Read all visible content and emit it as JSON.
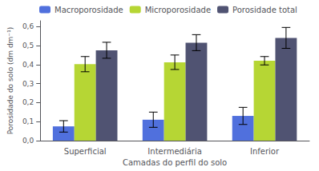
{
  "chart_data": {
    "type": "bar",
    "xlabel": "Camadas do perfil do solo",
    "ylabel": "Porosidade do solo (dm dm⁻¹)",
    "categories": [
      "Superficial",
      "Intermediária",
      "Inferior"
    ],
    "series": [
      {
        "name": "Macroporosidade",
        "values": [
          0.075,
          0.11,
          0.13
        ],
        "errors": [
          0.03,
          0.04,
          0.045
        ]
      },
      {
        "name": "Microporosidade",
        "values": [
          0.402,
          0.412,
          0.42
        ],
        "errors": [
          0.04,
          0.038,
          0.022
        ]
      },
      {
        "name": "Porosidade total",
        "values": [
          0.475,
          0.515,
          0.54
        ],
        "errors": [
          0.042,
          0.042,
          0.055
        ]
      }
    ],
    "ylim": [
      0.0,
      0.63
    ],
    "yticks": [
      {
        "value": 0.0,
        "label": "0,0"
      },
      {
        "value": 0.1,
        "label": "0,1"
      },
      {
        "value": 0.2,
        "label": "0,2"
      },
      {
        "value": 0.3,
        "label": "0,3"
      },
      {
        "value": 0.4,
        "label": "0,4"
      },
      {
        "value": 0.5,
        "label": "0,5"
      },
      {
        "value": 0.6,
        "label": "0,6"
      }
    ],
    "legend": "upper left",
    "grid": false
  }
}
